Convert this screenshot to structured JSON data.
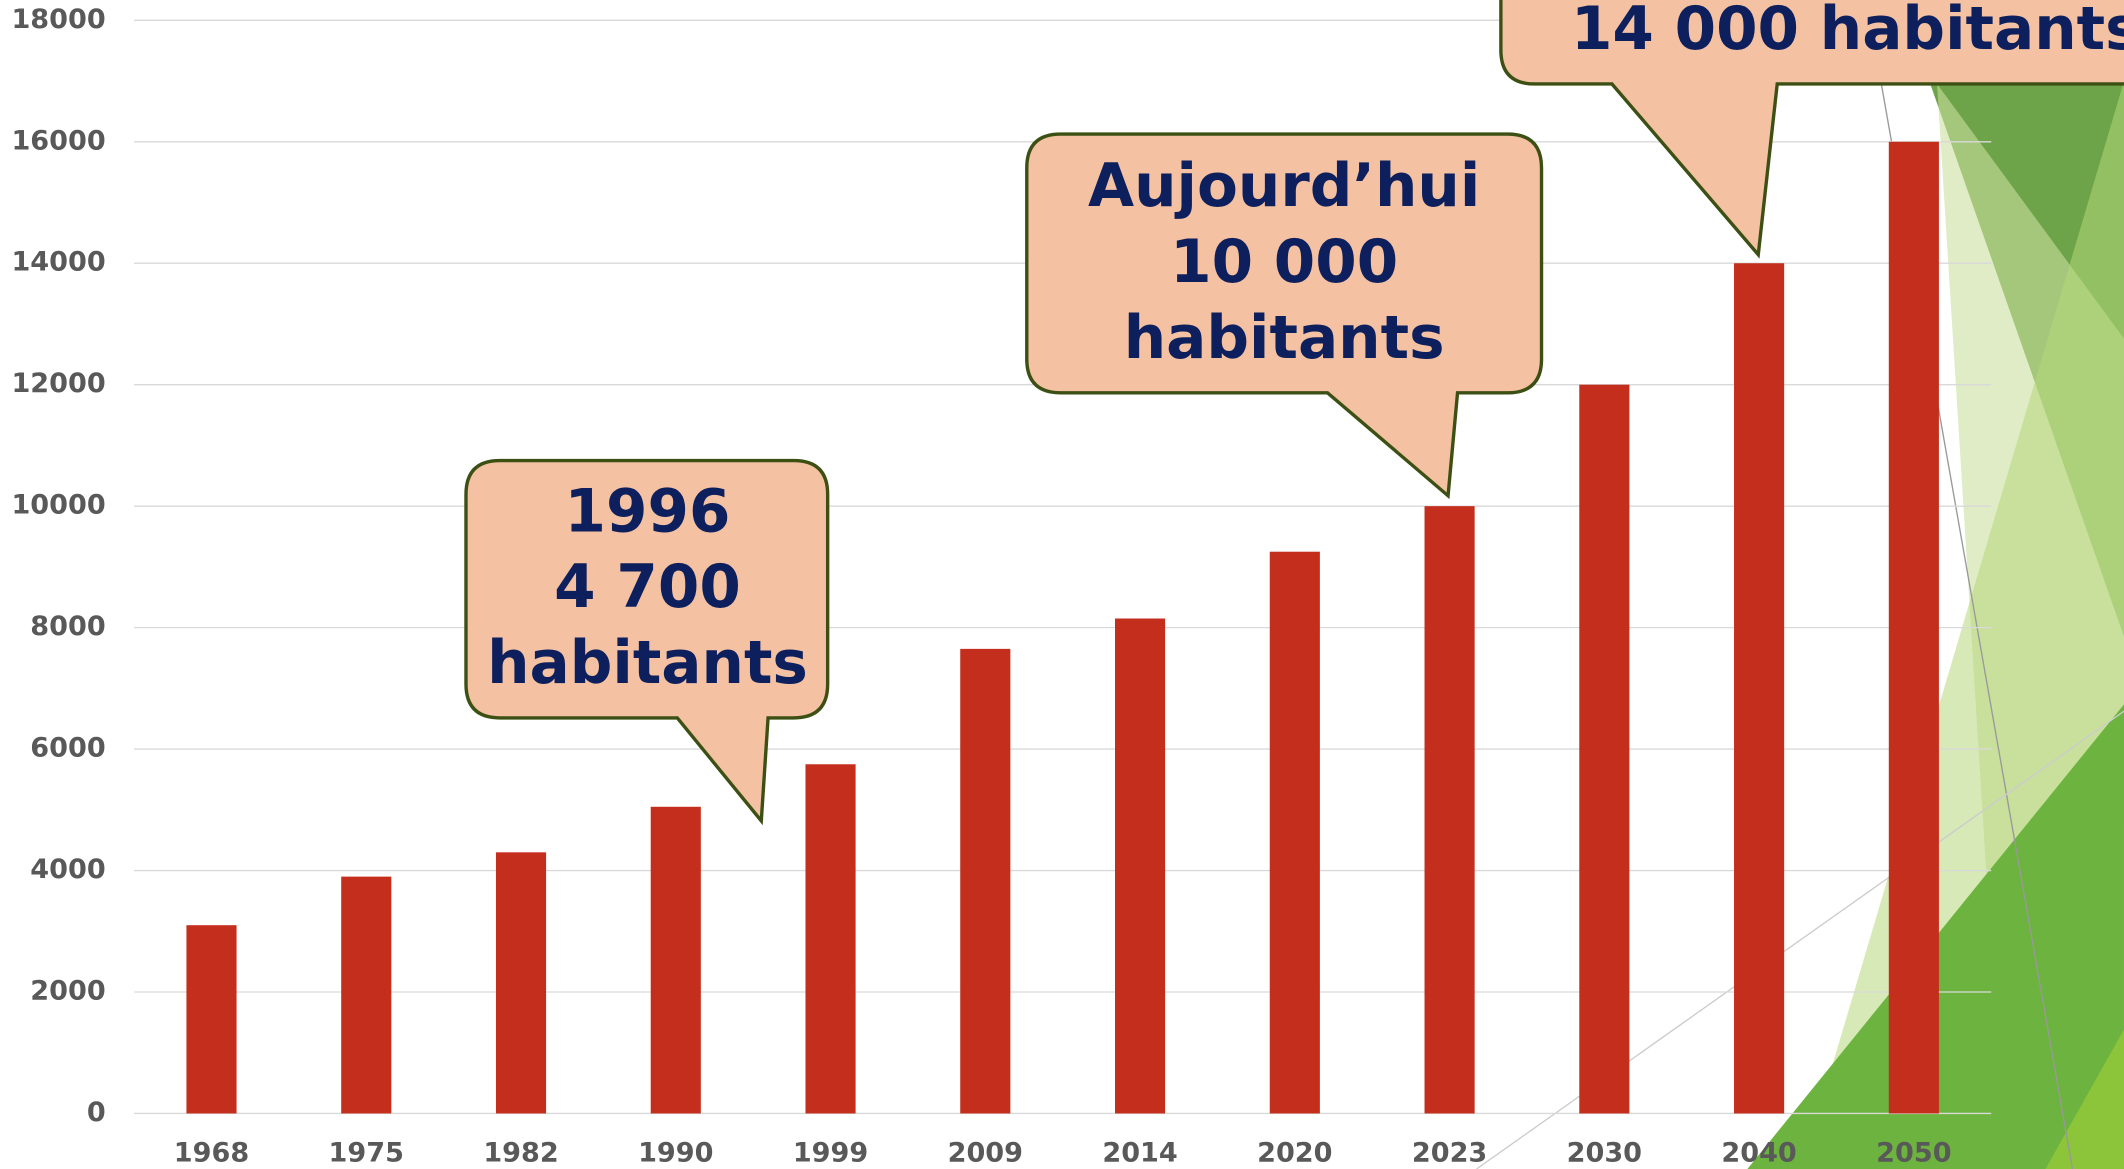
{
  "chart_data": {
    "type": "bar",
    "categories": [
      "1968",
      "1975",
      "1982",
      "1990",
      "1999",
      "2009",
      "2014",
      "2020",
      "2023",
      "2030",
      "2040",
      "2050"
    ],
    "values": [
      3100,
      3900,
      4300,
      5050,
      5750,
      7650,
      8150,
      9250,
      10000,
      12000,
      14000,
      16000
    ],
    "color": "#c42e1c",
    "ylim": [
      0,
      18000
    ],
    "yticks": [
      0,
      2000,
      4000,
      6000,
      8000,
      10000,
      12000,
      14000,
      16000,
      18000
    ],
    "grid": true,
    "annotations": [
      {
        "lines": [
          "1996",
          "4 700",
          "habitants"
        ]
      },
      {
        "lines": [
          "Aujourd’hui",
          "10 000",
          "habitants"
        ]
      },
      {
        "lines": [
          "14 000 habitants"
        ]
      }
    ]
  }
}
